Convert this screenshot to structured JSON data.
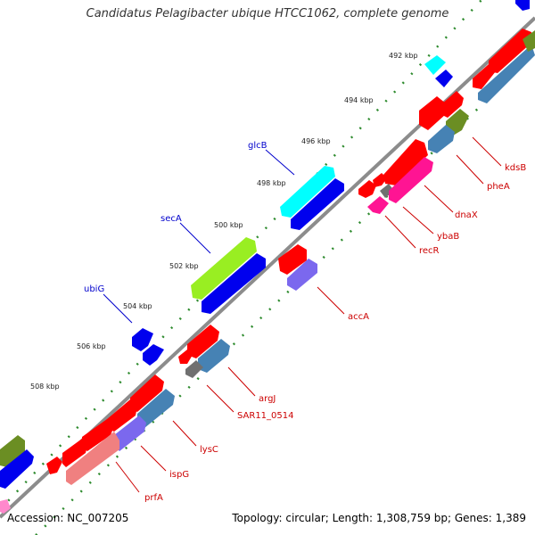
{
  "title": "Candidatus Pelagibacter ubique HTCC1062, complete genome",
  "footer": {
    "accession": "Accession: NC_007205",
    "summary": "Topology: circular; Length: 1,308,759 bp; Genes: 1,389"
  },
  "colors": {
    "backbone": "#8c8c8c",
    "ruler_dots": "#2e8b2e",
    "forward_label": "#0000cc",
    "reverse_label": "#cc0000",
    "red_cds": "#ff0000",
    "blue_cds": "#0000ee",
    "cyan_cds": "#00ffff",
    "lime_cds": "#99ee22",
    "steelblue_cds": "#4682b4",
    "magenta_cds": "#ff1493",
    "purple_cds": "#7b68ee",
    "olive_cds": "#6b8e23",
    "gray_cds": "#707070",
    "salmon_cds": "#f08080"
  },
  "ticks": [
    "492 kbp",
    "494 kbp",
    "496 kbp",
    "498 kbp",
    "500 kbp",
    "502 kbp",
    "504 kbp",
    "506 kbp",
    "508 kbp"
  ],
  "forward_labels": [
    {
      "text": "glcB"
    },
    {
      "text": "secA"
    },
    {
      "text": "ubiG"
    }
  ],
  "reverse_labels": [
    {
      "text": "kdsB"
    },
    {
      "text": "pheA"
    },
    {
      "text": "dnaX"
    },
    {
      "text": "ybaB"
    },
    {
      "text": "recR"
    },
    {
      "text": "accA"
    },
    {
      "text": "argJ"
    },
    {
      "text": "SAR11_0514"
    },
    {
      "text": "lysC"
    },
    {
      "text": "ispG"
    },
    {
      "text": "prfA"
    }
  ]
}
